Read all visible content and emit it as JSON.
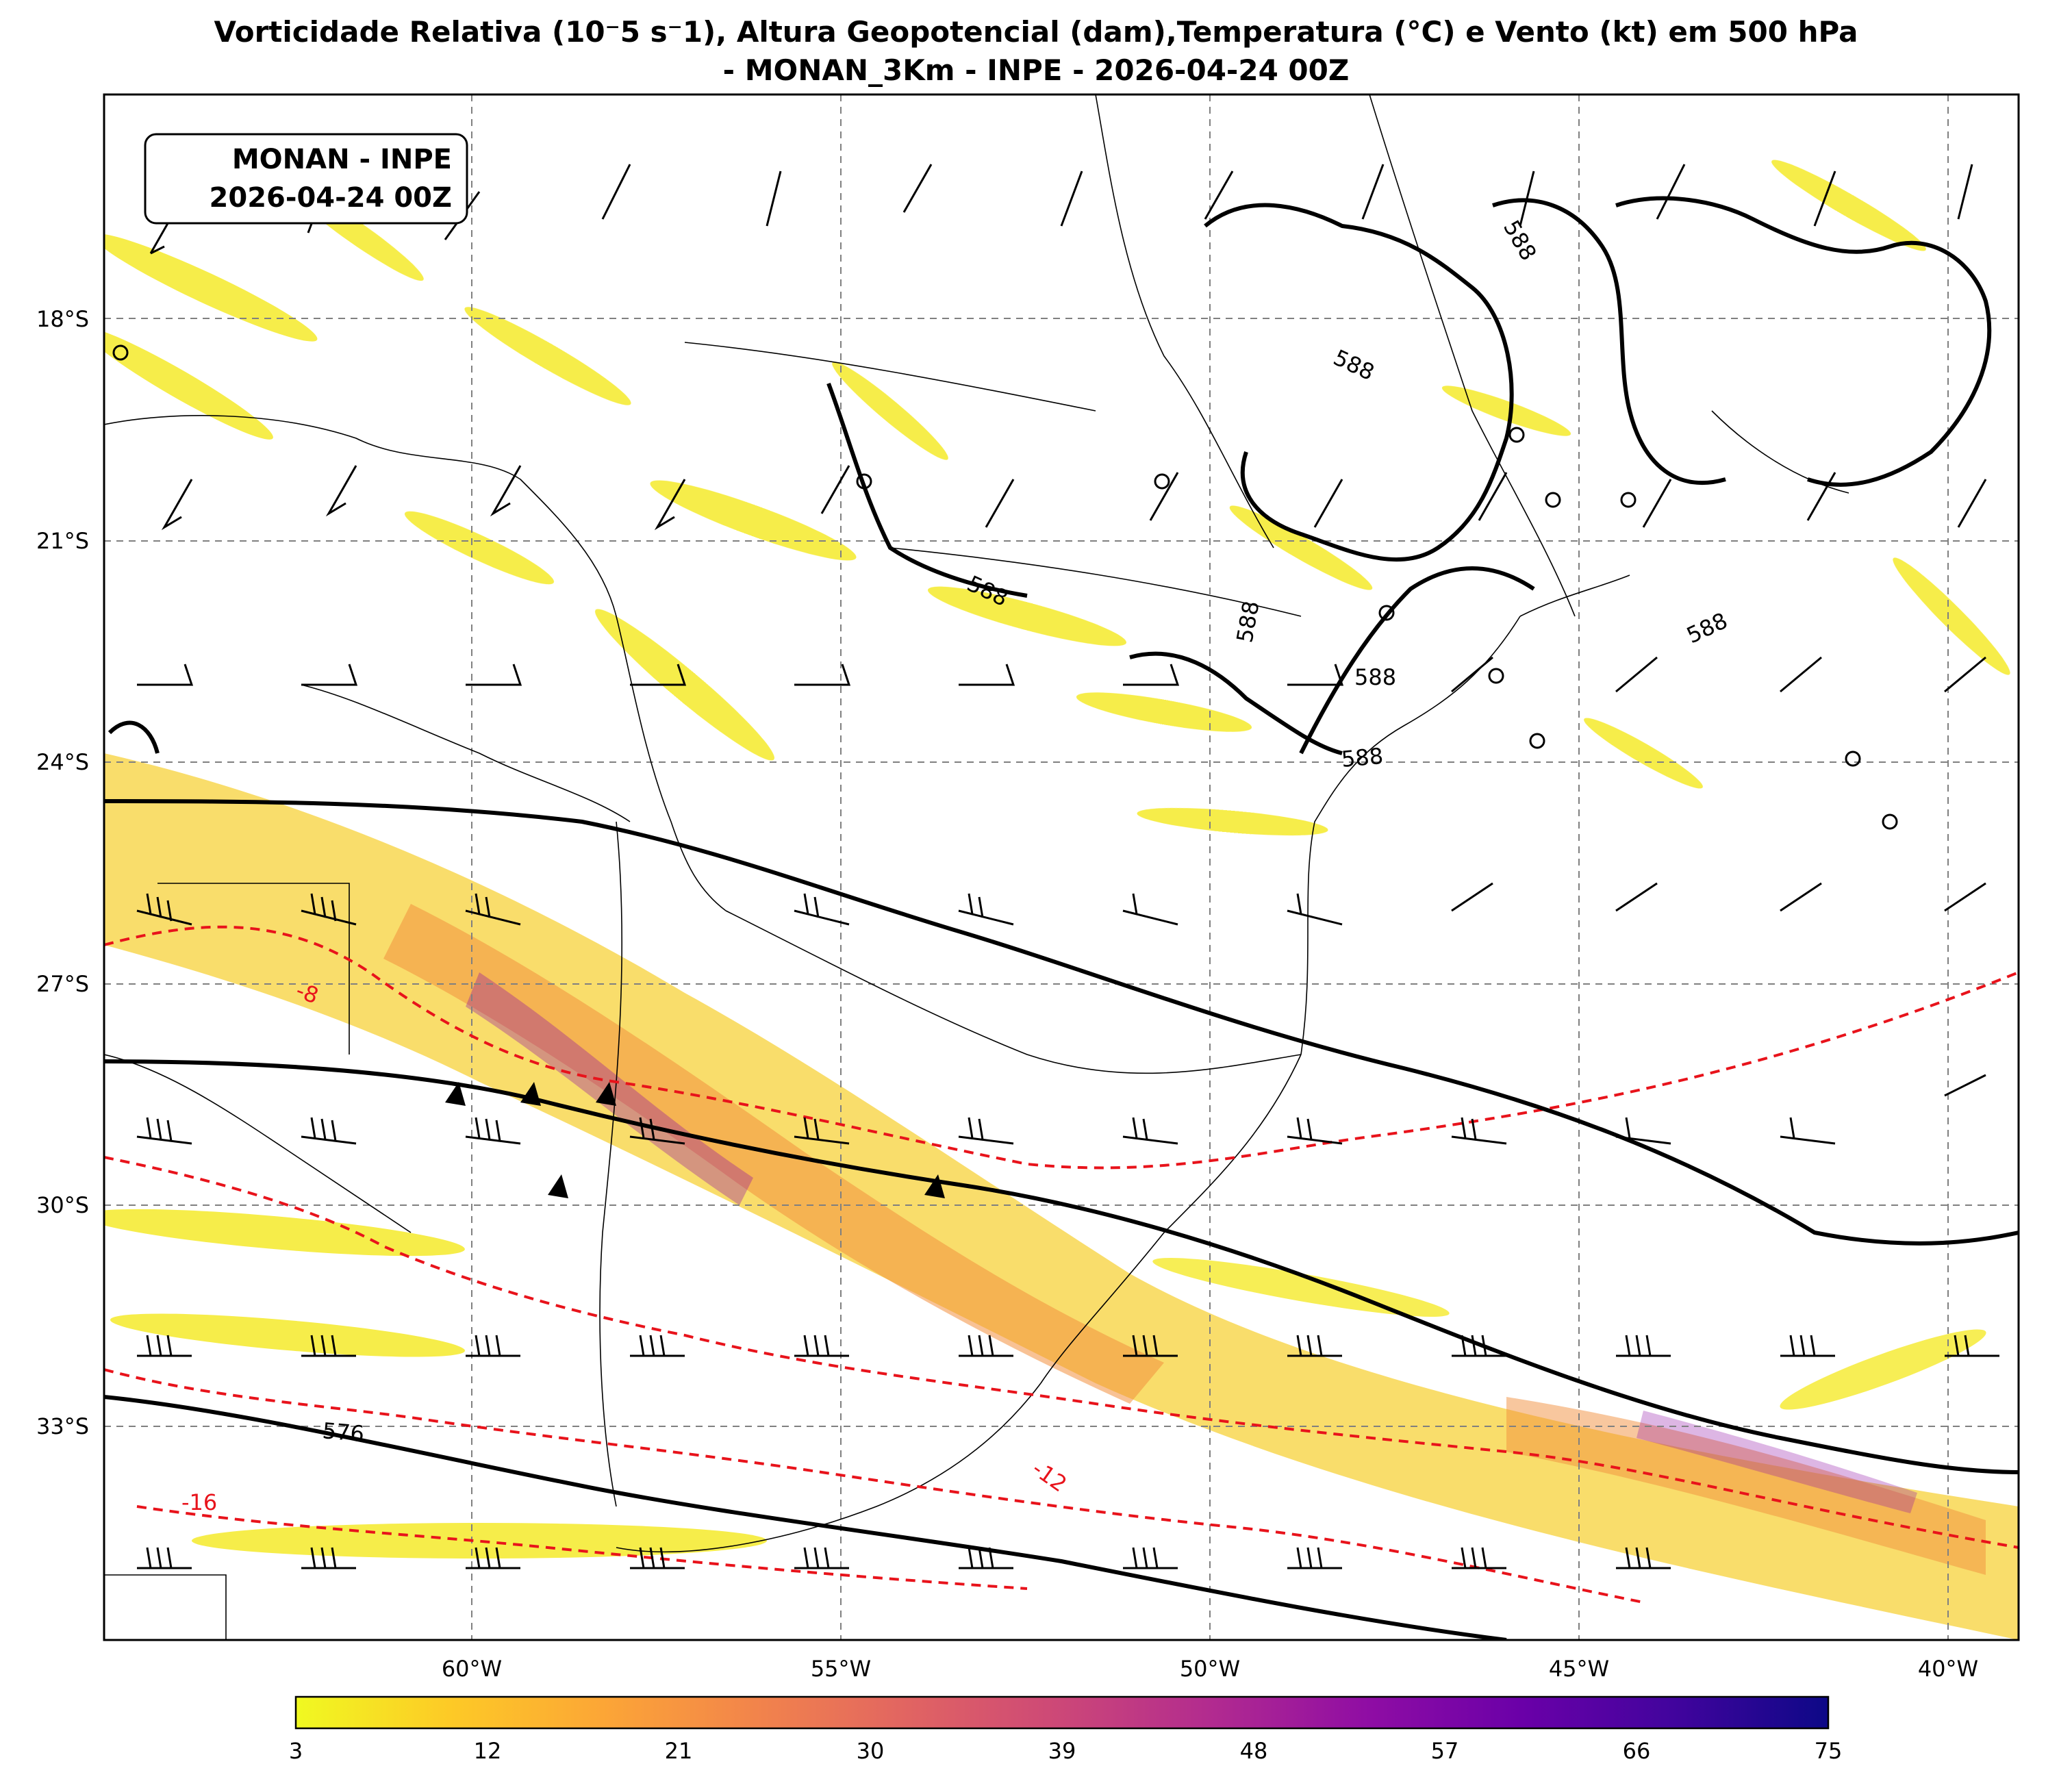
{
  "title": {
    "line1": "Vorticidade Relativa (10⁻5 s⁻1), Altura Geopotencial (dam),Temperatura (°C) e Vento (kt) em 500 hPa",
    "line2": "- MONAN_3Km - INPE - 2026-04-24 00Z"
  },
  "label_box": {
    "line1": "MONAN - INPE",
    "line2": "2026-04-24 00Z"
  },
  "lat_ticks": [
    "18°S",
    "21°S",
    "24°S",
    "27°S",
    "30°S",
    "33°S"
  ],
  "lon_ticks": [
    "60°W",
    "55°W",
    "50°W",
    "45°W",
    "40°W"
  ],
  "contour_labels": {
    "height": [
      "588",
      "588",
      "588",
      "588",
      "588",
      "588",
      "588",
      "576"
    ],
    "temperature": [
      "-8",
      "-12",
      "-16"
    ]
  },
  "colorbar": {
    "ticks": [
      "3",
      "12",
      "21",
      "30",
      "39",
      "48",
      "57",
      "66",
      "75"
    ],
    "colors": [
      "#f0f921",
      "#fdca26",
      "#fca636",
      "#f2844b",
      "#e16462",
      "#cc4778",
      "#b12a90",
      "#8f0da4",
      "#6a00a8",
      "#41049d",
      "#0d0887"
    ]
  },
  "colors": {
    "vorticity_low": "#f5ea2a",
    "vorticity_mid": "#f29a3c",
    "vorticity_high": "#8f0da4",
    "height_contour": "#000000",
    "temperature_contour": "#e8131b",
    "grid": "#808080"
  }
}
